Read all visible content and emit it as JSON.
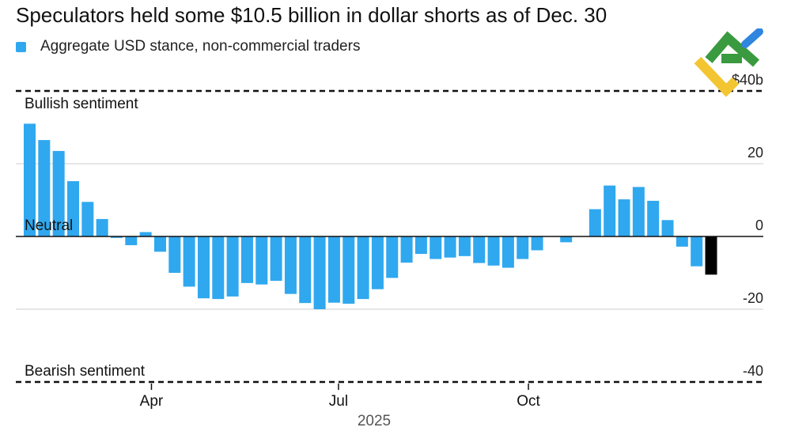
{
  "header": {
    "title": "Speculators held some $10.5 billion in dollar shorts as of Dec. 30"
  },
  "legend": {
    "label": "Aggregate USD stance, non-commercial traders",
    "color": "#2fa8ef"
  },
  "annotations": {
    "bullish": "Bullish sentiment",
    "neutral": "Neutral",
    "bearish": "Bearish sentiment"
  },
  "colors": {
    "bar": "#2fa8ef",
    "latest_bar": "#000000",
    "logo_green": "#3a9a3f",
    "logo_yellow": "#f2c531",
    "logo_blue": "#2e86de"
  },
  "chart_data": {
    "type": "bar",
    "title": "Speculators held some $10.5 billion in dollar shorts as of Dec. 30",
    "series": [
      {
        "name": "Aggregate USD stance, non-commercial traders",
        "unit": "$ billions",
        "values": [
          31,
          26.5,
          23.5,
          15.2,
          9.5,
          4.8,
          -0.4,
          -2.4,
          1.2,
          -4.2,
          -10,
          -13.8,
          -17,
          -17.2,
          -16.5,
          -12.8,
          -13.2,
          -12.2,
          -15.8,
          -18.3,
          -20,
          -18.2,
          -18.5,
          -17.2,
          -14.5,
          -11.4,
          -7.2,
          -4.8,
          -6.2,
          -5.8,
          -5.4,
          -7.3,
          -8,
          -8.6,
          -6.2,
          -3.8,
          0.1,
          -1.6,
          0.1,
          7.5,
          14,
          10.2,
          13.6,
          9.8,
          4.5,
          -2.8,
          -8.2,
          -10.5
        ]
      }
    ],
    "highlight_last": true,
    "ylim": [
      -40,
      40
    ],
    "yticks": [
      40,
      20,
      0,
      -20,
      -40
    ],
    "ytick_labels": [
      "$40b",
      "20",
      "0",
      "-20",
      "-40"
    ],
    "xticks": [
      {
        "label": "Apr",
        "index": 8.4
      },
      {
        "label": "Jul",
        "index": 21.3
      },
      {
        "label": "Oct",
        "index": 34.4
      }
    ],
    "xlabel": "2025",
    "reference_lines": [
      {
        "value": 40,
        "style": "dashed",
        "label": "Bullish sentiment"
      },
      {
        "value": 0,
        "style": "solid",
        "label": "Neutral"
      },
      {
        "value": -40,
        "style": "dashed",
        "label": "Bearish sentiment"
      }
    ],
    "gridlines": [
      20,
      -20
    ]
  }
}
